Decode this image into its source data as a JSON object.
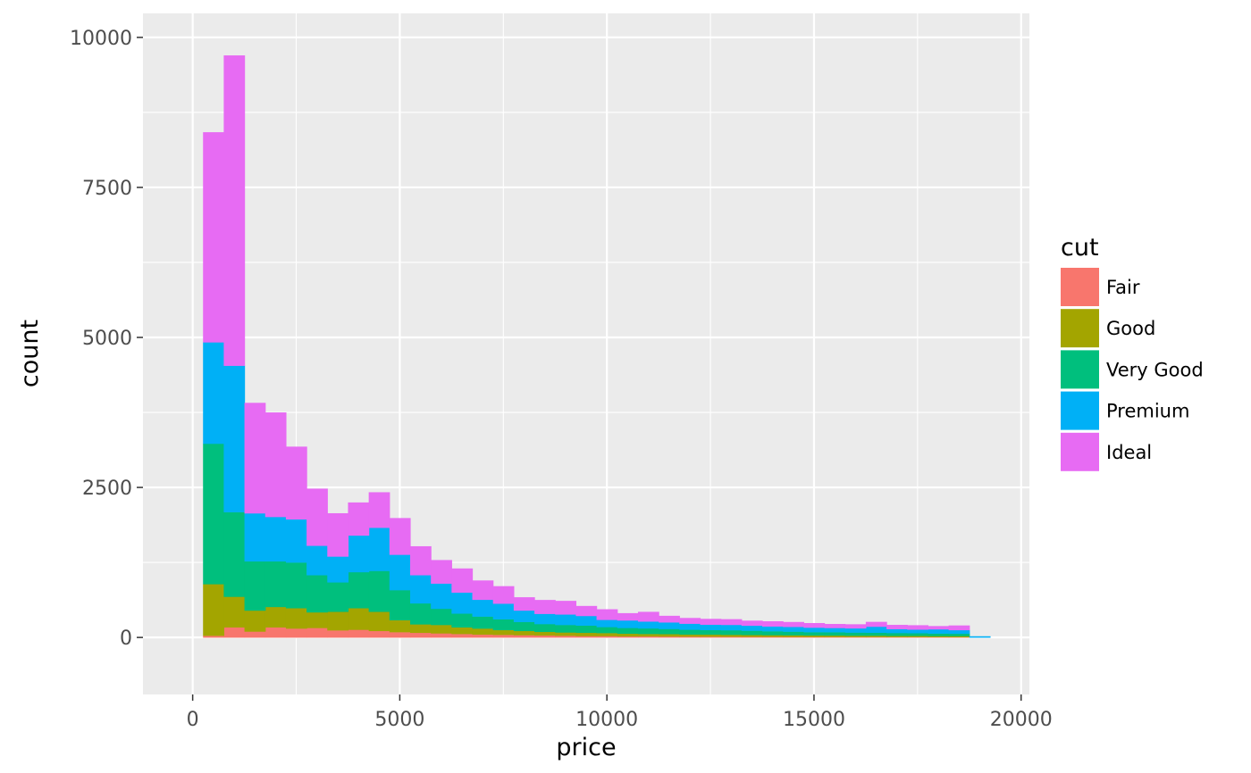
{
  "chart_data": {
    "type": "bar",
    "subtype": "stacked-histogram",
    "xlabel": "price",
    "ylabel": "count",
    "xlim": [
      -1200,
      20200
    ],
    "ylim": [
      -950,
      10400
    ],
    "x_ticks": [
      0,
      5000,
      10000,
      15000,
      20000
    ],
    "x_tick_labels": [
      "0",
      "5000",
      "10000",
      "15000",
      "20000"
    ],
    "y_ticks": [
      0,
      2500,
      5000,
      7500,
      10000
    ],
    "y_tick_labels": [
      "0",
      "2500",
      "5000",
      "7500",
      "10000"
    ],
    "grid": true,
    "background": "#ebebeb",
    "bin_width": 500,
    "bin_starts": [
      250,
      750,
      1250,
      1750,
      2250,
      2750,
      3250,
      3750,
      4250,
      4750,
      5250,
      5750,
      6250,
      6750,
      7250,
      7750,
      8250,
      8750,
      9250,
      9750,
      10250,
      10750,
      11250,
      11750,
      12250,
      12750,
      13250,
      13750,
      14250,
      14750,
      15250,
      15750,
      16250,
      16750,
      17250,
      17750,
      18250,
      18750
    ],
    "legend": {
      "title": "cut",
      "position": "right"
    },
    "series": [
      {
        "name": "Fair",
        "color": "#F8766D",
        "values": [
          30,
          170,
          100,
          170,
          150,
          160,
          120,
          130,
          110,
          90,
          80,
          70,
          60,
          50,
          45,
          40,
          35,
          30,
          25,
          25,
          20,
          20,
          18,
          16,
          15,
          14,
          13,
          12,
          11,
          10,
          10,
          9,
          9,
          8,
          8,
          7,
          6,
          0
        ]
      },
      {
        "name": "Good",
        "color": "#A3A500",
        "values": [
          860,
          510,
          350,
          340,
          340,
          260,
          310,
          360,
          320,
          200,
          140,
          140,
          110,
          100,
          80,
          70,
          60,
          55,
          55,
          50,
          45,
          40,
          40,
          35,
          35,
          32,
          30,
          28,
          27,
          25,
          24,
          22,
          22,
          20,
          20,
          18,
          18,
          0
        ]
      },
      {
        "name": "Very Good",
        "color": "#00BF7D",
        "values": [
          2340,
          1410,
          820,
          760,
          760,
          620,
          490,
          600,
          680,
          500,
          350,
          270,
          230,
          200,
          180,
          150,
          130,
          125,
          120,
          100,
          95,
          92,
          85,
          80,
          75,
          75,
          70,
          65,
          60,
          55,
          55,
          52,
          50,
          48,
          45,
          42,
          40,
          0
        ]
      },
      {
        "name": "Premium",
        "color": "#00B0F6",
        "values": [
          1690,
          2440,
          800,
          740,
          720,
          490,
          430,
          610,
          720,
          590,
          470,
          420,
          350,
          280,
          260,
          190,
          170,
          175,
          160,
          120,
          125,
          115,
          110,
          100,
          90,
          90,
          85,
          80,
          80,
          75,
          70,
          70,
          100,
          65,
          60,
          70,
          60,
          20
        ]
      },
      {
        "name": "Ideal",
        "color": "#E76BF3",
        "values": [
          3500,
          5170,
          1840,
          1740,
          1210,
          950,
          720,
          550,
          590,
          610,
          480,
          390,
          400,
          320,
          290,
          220,
          230,
          225,
          165,
          175,
          120,
          160,
          108,
          94,
          95,
          94,
          82,
          85,
          80,
          75,
          66,
          67,
          79,
          69,
          71,
          53,
          76,
          0
        ]
      }
    ]
  }
}
